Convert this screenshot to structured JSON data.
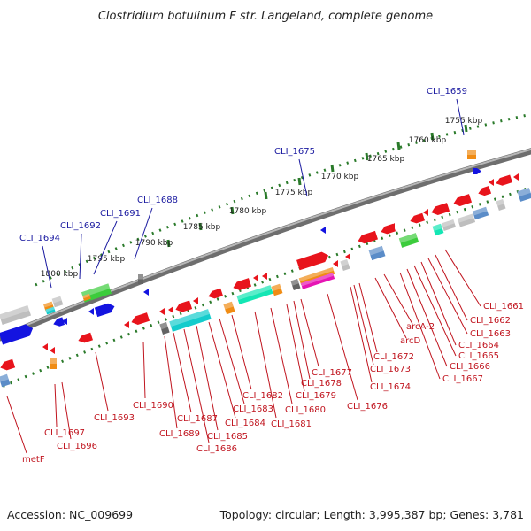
{
  "title": "Clostridium botulinum F str. Langeland, complete genome",
  "footer": {
    "accession": "Accession: NC_009699",
    "summary": "Topology: circular; Length: 3,995,387 bp; Genes: 3,781"
  },
  "scale": {
    "unit": "kbp",
    "ticks": [
      {
        "kbp": 1755,
        "label": "1755 kbp"
      },
      {
        "kbp": 1760,
        "label": "1760 kbp"
      },
      {
        "kbp": 1765,
        "label": "1765 kbp"
      },
      {
        "kbp": 1770,
        "label": "1770 kbp"
      },
      {
        "kbp": 1775,
        "label": "1775 kbp"
      },
      {
        "kbp": 1780,
        "label": "1780 kbp"
      },
      {
        "kbp": 1785,
        "label": "1785 kbp"
      },
      {
        "kbp": 1790,
        "label": "1790 kbp"
      },
      {
        "kbp": 1795,
        "label": "1795 kbp"
      },
      {
        "kbp": 1800,
        "label": "1800 kbp"
      }
    ]
  },
  "colors": {
    "red": "#e8141c",
    "blue": "#1414e0",
    "green": "#3ccc3c",
    "orange": "#f08c14",
    "cyan": "#14cccc",
    "teal": "#14e6b4",
    "gray": "#bebebe",
    "steel": "#5a8cc8",
    "magenta": "#e614b4",
    "darkgray": "#646464",
    "ticks": "#2a7a2a",
    "backbone": "#8a8a8a",
    "label_blue": "#1a1aa0",
    "label_red": "#c0141e"
  },
  "labels_blue": [
    "CLI_1659",
    "CLI_1675",
    "CLI_1688",
    "CLI_1691",
    "CLI_1692",
    "CLI_1694"
  ],
  "labels_red": [
    "CLI_1661",
    "CLI_1662",
    "CLI_1663",
    "CLI_1664",
    "CLI_1665",
    "CLI_1666",
    "CLI_1667",
    "arcA-2",
    "arcD",
    "CLI_1672",
    "CLI_1673",
    "CLI_1674",
    "CLI_1676",
    "CLI_1677",
    "CLI_1678",
    "CLI_1679",
    "CLI_1680",
    "CLI_1681",
    "CLI_1682",
    "CLI_1683",
    "CLI_1684",
    "CLI_1685",
    "CLI_1686",
    "CLI_1687",
    "CLI_1689",
    "CLI_1690",
    "CLI_1693",
    "CLI_1696",
    "CLI_1697",
    "metF"
  ]
}
